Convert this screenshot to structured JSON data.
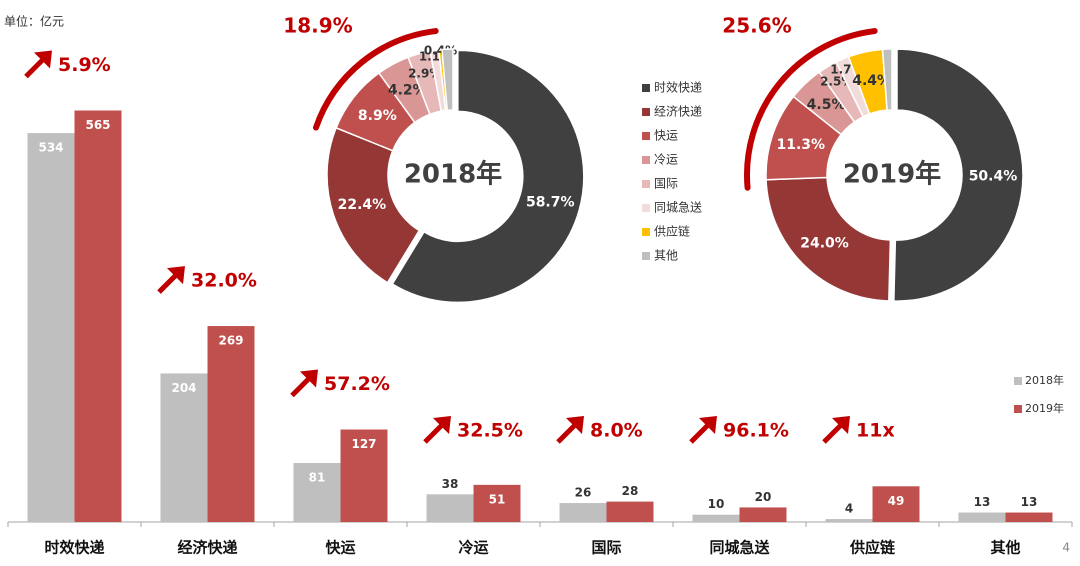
{
  "chart_data": [
    {
      "type": "bar",
      "unit_label": "单位：亿元",
      "categories": [
        "时效快递",
        "经济快递",
        "快运",
        "冷运",
        "国际",
        "同城急送",
        "供应链",
        "其他"
      ],
      "series": [
        {
          "name": "2018年",
          "color": "#bfbfbf",
          "values": [
            534,
            204,
            81,
            38,
            26,
            10,
            4,
            13
          ]
        },
        {
          "name": "2019年",
          "color": "#c0504d",
          "values": [
            565,
            269,
            127,
            51,
            28,
            20,
            49,
            13
          ]
        }
      ],
      "growth_labels": [
        "5.9%",
        "32.0%",
        "57.2%",
        "32.5%",
        "8.0%",
        "96.1%",
        "11x",
        null
      ],
      "ylim": [
        0,
        600
      ],
      "legend": "right"
    },
    {
      "type": "pie",
      "title": "2018年",
      "annotation": "18.9%",
      "categories": [
        "时效快递",
        "经济快递",
        "快运",
        "冷运",
        "国际",
        "同城急送",
        "供应链",
        "其他"
      ],
      "colors": [
        "#404040",
        "#953735",
        "#c0504d",
        "#d99694",
        "#e6b9b8",
        "#f2dcdb",
        "#ffc000",
        "#bfbfbf"
      ],
      "values": [
        58.7,
        22.4,
        8.9,
        4.2,
        2.9,
        1.1,
        0.4,
        1.4
      ],
      "value_labels": [
        "58.7%",
        "22.4%",
        "8.9%",
        "4.2%",
        "2.9%",
        "1.1%",
        "0.4%",
        null
      ]
    },
    {
      "type": "pie",
      "title": "2019年",
      "annotation": "25.6%",
      "categories": [
        "时效快递",
        "经济快递",
        "快运",
        "冷运",
        "国际",
        "同城急送",
        "供应链",
        "其他"
      ],
      "colors": [
        "#404040",
        "#953735",
        "#c0504d",
        "#d99694",
        "#e6b9b8",
        "#f2dcdb",
        "#ffc000",
        "#bfbfbf"
      ],
      "values": [
        50.4,
        24.0,
        11.3,
        4.5,
        2.5,
        1.7,
        4.4,
        1.2
      ],
      "value_labels": [
        "50.4%",
        "24.0%",
        "11.3%",
        "4.5%",
        "2.5%",
        "1.7%",
        "4.4%",
        null
      ]
    }
  ],
  "page_number": "4"
}
